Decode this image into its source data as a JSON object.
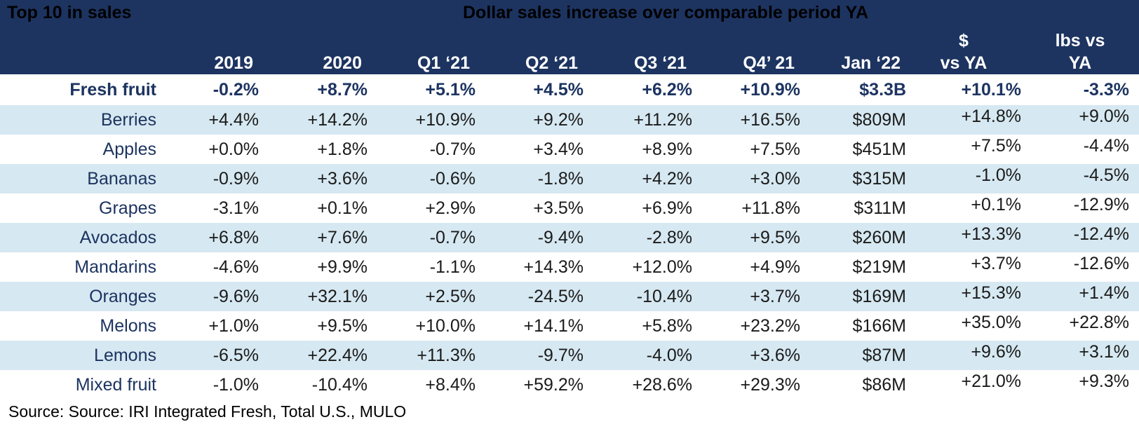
{
  "title": "Top 10 in sales",
  "subtitle": "Dollar sales increase over comparable period YA",
  "colors": {
    "header_bg": "#1d3461",
    "header_text": "#ffffff",
    "band": "#d6e8f1",
    "label_text": "#1d3461"
  },
  "chart_data": {
    "type": "table",
    "title": "Top 10 in sales",
    "subtitle": "Dollar sales increase over comparable period YA",
    "columns": [
      "2019",
      "2020",
      "Q1 ‘21",
      "Q2 ‘21",
      "Q3 ‘21",
      "Q4’ 21",
      "Jan ‘22",
      "$ vs YA",
      "lbs vs YA"
    ],
    "rows": [
      {
        "name": "Fresh fruit",
        "values": [
          "-0.2%",
          "+8.7%",
          "+5.1%",
          "+4.5%",
          "+6.2%",
          "+10.9%",
          "$3.3B",
          "+10.1%",
          "-3.3%"
        ]
      },
      {
        "name": "Berries",
        "values": [
          "+4.4%",
          "+14.2%",
          "+10.9%",
          "+9.2%",
          "+11.2%",
          "+16.5%",
          "$809M",
          "+14.8%",
          "+9.0%"
        ]
      },
      {
        "name": "Apples",
        "values": [
          "+0.0%",
          "+1.8%",
          "-0.7%",
          "+3.4%",
          "+8.9%",
          "+7.5%",
          "$451M",
          "+7.5%",
          "-4.4%"
        ]
      },
      {
        "name": "Bananas",
        "values": [
          "-0.9%",
          "+3.6%",
          "-0.6%",
          "-1.8%",
          "+4.2%",
          "+3.0%",
          "$315M",
          "-1.0%",
          "-4.5%"
        ]
      },
      {
        "name": "Grapes",
        "values": [
          "-3.1%",
          "+0.1%",
          "+2.9%",
          "+3.5%",
          "+6.9%",
          "+11.8%",
          "$311M",
          "+0.1%",
          "-12.9%"
        ]
      },
      {
        "name": "Avocados",
        "values": [
          "+6.8%",
          "+7.6%",
          "-0.7%",
          "-9.4%",
          "-2.8%",
          "+9.5%",
          "$260M",
          "+13.3%",
          "-12.4%"
        ]
      },
      {
        "name": "Mandarins",
        "values": [
          "-4.6%",
          "+9.9%",
          "-1.1%",
          "+14.3%",
          "+12.0%",
          "+4.9%",
          "$219M",
          "+3.7%",
          "-12.6%"
        ]
      },
      {
        "name": "Oranges",
        "values": [
          "-9.6%",
          "+32.1%",
          "+2.5%",
          "-24.5%",
          "-10.4%",
          "+3.7%",
          "$169M",
          "+15.3%",
          "+1.4%"
        ]
      },
      {
        "name": "Melons",
        "values": [
          "+1.0%",
          "+9.5%",
          "+10.0%",
          "+14.1%",
          "+5.8%",
          "+23.2%",
          "$166M",
          "+35.0%",
          "+22.8%"
        ]
      },
      {
        "name": "Lemons",
        "values": [
          "-6.5%",
          "+22.4%",
          "+11.3%",
          "-9.7%",
          "-4.0%",
          "+3.6%",
          "$87M",
          "+9.6%",
          "+3.1%"
        ]
      },
      {
        "name": "Mixed fruit",
        "values": [
          "-1.0%",
          "-10.4%",
          "+8.4%",
          "+59.2%",
          "+28.6%",
          "+29.3%",
          "$86M",
          "+21.0%",
          "+9.3%"
        ]
      }
    ]
  },
  "header": {
    "col_labels": [
      "2019",
      "2020",
      "Q1 ‘21",
      "Q2 ‘21",
      "Q3 ‘21",
      "Q4’ 21",
      "Jan ‘22"
    ],
    "dollar_col": {
      "line1": "$",
      "line2": "vs YA"
    },
    "lbs_col": {
      "line1": "lbs vs",
      "line2": "YA"
    }
  },
  "source": "Source: Source: IRI Integrated Fresh, Total U.S., MULO"
}
